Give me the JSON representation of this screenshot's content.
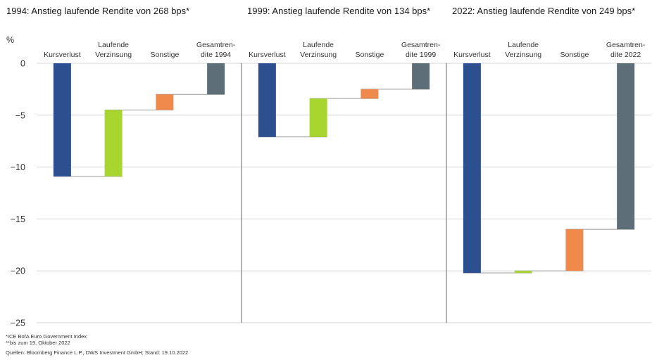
{
  "chart_data": {
    "type": "bar",
    "subtype": "waterfall",
    "y_unit_label": "%",
    "ylim": [
      -25,
      0
    ],
    "yticks": [
      0,
      -5,
      -10,
      -15,
      -20,
      -25
    ],
    "grid": true,
    "colors": {
      "Kursverlust": "#2b4f8f",
      "Laufende Verzinsung": "#a8d62f",
      "Sonstige": "#ef8a4c",
      "Gesamtrendite": "#5d6e78",
      "connector": "#999999",
      "grid": "#d4d4d4"
    },
    "panels": [
      {
        "title": "1994: Anstieg laufende Rendite von 268 bps*",
        "categories": [
          [
            "Kursverlust"
          ],
          [
            "Laufende",
            "Verzinsung"
          ],
          [
            "Sonstige"
          ],
          [
            "Gesamtren-",
            "dite 1994"
          ]
        ],
        "steps": [
          {
            "name": "Kursverlust",
            "start": 0,
            "end": -10.9
          },
          {
            "name": "Laufende Verzinsung",
            "start": -10.9,
            "end": -4.5
          },
          {
            "name": "Sonstige",
            "start": -4.5,
            "end": -3.0
          },
          {
            "name": "Gesamtrendite",
            "start": 0,
            "end": -3.0
          }
        ]
      },
      {
        "title": "1999: Anstieg laufende Rendite von 134 bps*",
        "categories": [
          [
            "Kursverlust"
          ],
          [
            "Laufende",
            "Verzinsung"
          ],
          [
            "Sonstige"
          ],
          [
            "Gesamtren-",
            "dite 1999"
          ]
        ],
        "steps": [
          {
            "name": "Kursverlust",
            "start": 0,
            "end": -7.1
          },
          {
            "name": "Laufende Verzinsung",
            "start": -7.1,
            "end": -3.4
          },
          {
            "name": "Sonstige",
            "start": -3.4,
            "end": -2.5
          },
          {
            "name": "Gesamtrendite",
            "start": 0,
            "end": -2.5
          }
        ]
      },
      {
        "title": "2022: Anstieg laufende Rendite von 249 bps*",
        "categories": [
          [
            "Kursverlust"
          ],
          [
            "Laufende",
            "Verzinsung"
          ],
          [
            "Sonstige"
          ],
          [
            "Gesamtren-",
            "dite 2022"
          ]
        ],
        "steps": [
          {
            "name": "Kursverlust",
            "start": 0,
            "end": -20.2
          },
          {
            "name": "Laufende Verzinsung",
            "start": -20.2,
            "end": -20.0
          },
          {
            "name": "Sonstige",
            "start": -20.0,
            "end": -16.0
          },
          {
            "name": "Gesamtrendite",
            "start": 0,
            "end": -16.0
          }
        ]
      }
    ]
  },
  "footnotes": {
    "note1": "*ICE BofA Euro Government Index",
    "note2": "**bis zum 19. Oktober 2022",
    "sources": "Quellen: Bloomberg Finance L.P., DWS Investment GmbH; Stand: 19.10.2022"
  }
}
